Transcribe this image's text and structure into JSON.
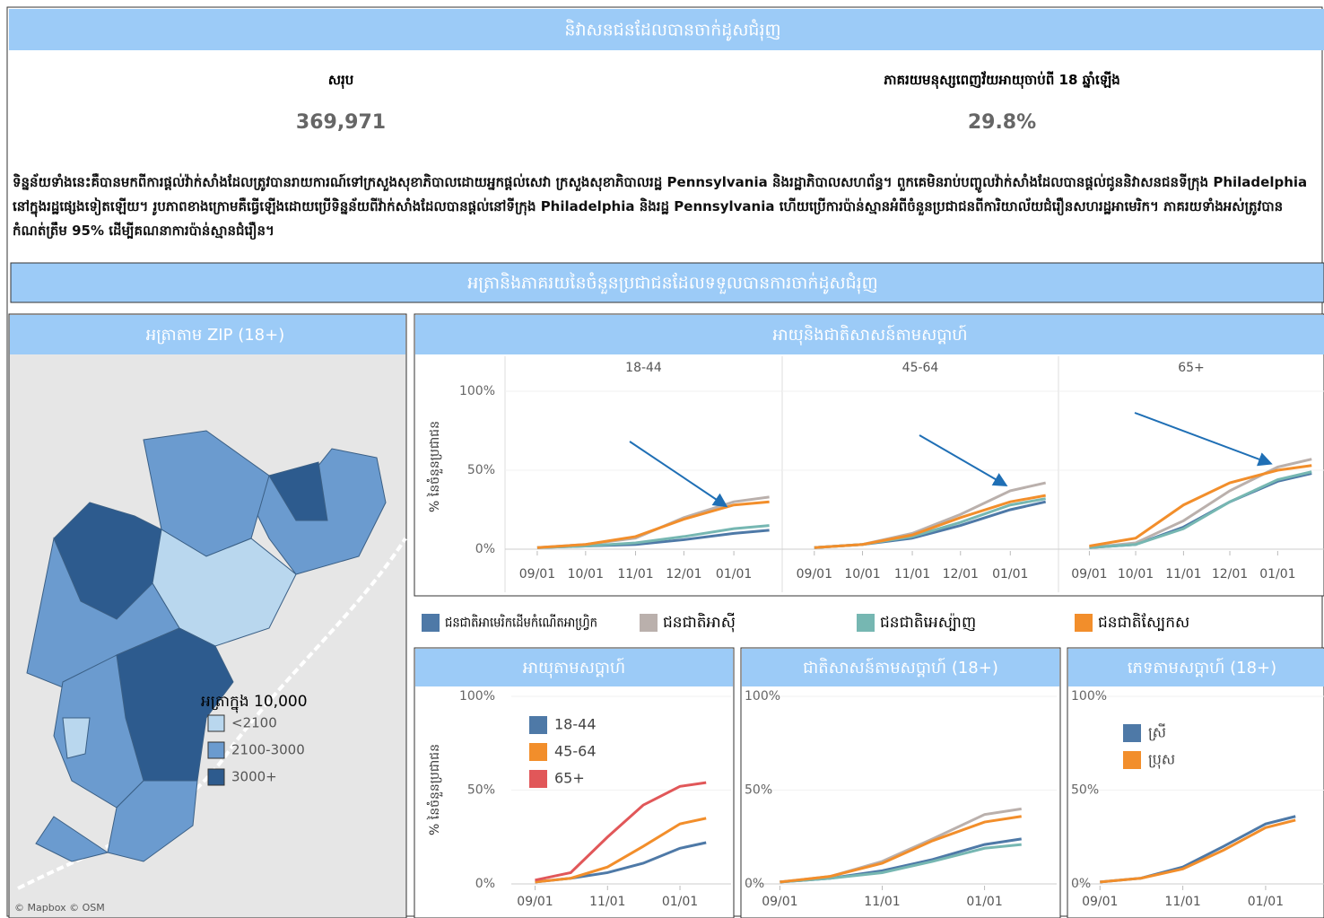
{
  "header": {
    "title": "និវាសនជនដែលបានចាក់ដូសជំរុញ"
  },
  "stats": [
    {
      "label": "សរុប",
      "value": "369,971"
    },
    {
      "label": "ភាគរយមនុស្សពេញវ័យអាយុចាប់ពី 18 ឆ្នាំឡើង",
      "value": "29.8%"
    }
  ],
  "description": "ទិន្នន័យទាំងនេះគឺបានមកពីការផ្តល់វ៉ាក់សាំងដែលត្រូវបានរាយការណ៍ទៅក្រសួងសុខាភិបាលដោយអ្នកផ្តល់សេវា ក្រសួងសុខាភិបាលរដ្ឋ Pennsylvania និងរដ្ឋាភិបាលសហព័ន្ធ។ ពួកគេមិនរាប់បញ្ចូលវ៉ាក់សាំងដែលបានផ្តល់ជូននិវាសនជនទីក្រុង Philadelphia នៅក្នុងរដ្ឋផ្សេងទៀតឡើយ។ រូបភាពខាងក្រោមគឺធ្វើឡើងដោយប្រើទិន្នន័យពីវ៉ាក់សាំងដែលបានផ្តល់នៅទីក្រុង Philadelphia និងរដ្ឋ Pennsylvania ហើយប្រើការប៉ាន់ស្មានអំពីចំនួនប្រជាជនពីការិយាល័យជំរឿនសហរដ្ឋអាមេរិក។ ភាគរយទាំងអស់ត្រូវបានកំណត់ត្រឹម 95% ដើម្បីគណនាការប៉ាន់ស្មានជំរឿន។",
  "section": {
    "title": "អត្រានិងភាគរយនៃចំនួនប្រជាជនដែលទទួលបានការចាក់ដូសជំរុញ"
  },
  "map": {
    "title": "អត្រាតាម ZIP (18+)",
    "legend_title": "អត្រាក្នុង 10,000",
    "legend": [
      {
        "label": "<2100",
        "color": "#b9d7ee"
      },
      {
        "label": "2100-3000",
        "color": "#6b9bcf"
      },
      {
        "label": "3000+",
        "color": "#2d5b8e"
      }
    ],
    "attribution": "© Mapbox © OSM"
  },
  "chart_data": [
    {
      "type": "line",
      "title": "អាយុនិងជាតិសាសន៍តាមសប្តាហ៍",
      "y_label": "% នៃចំនួនប្រជាជន",
      "facets": [
        "18-44",
        "45-64",
        "65+"
      ],
      "x": [
        0,
        30,
        61,
        91,
        122,
        144
      ],
      "xlim": [
        -20,
        152
      ],
      "xticks": [
        {
          "value": 0,
          "label": "09/01"
        },
        {
          "value": 30,
          "label": "10/01"
        },
        {
          "value": 61,
          "label": "11/01"
        },
        {
          "value": 91,
          "label": "12/01"
        },
        {
          "value": 122,
          "label": "01/01"
        }
      ],
      "ylim": [
        0,
        100
      ],
      "yticks": [
        {
          "value": 0,
          "label": "0%"
        },
        {
          "value": 50,
          "label": "50%"
        },
        {
          "value": 100,
          "label": "100%"
        }
      ],
      "series": [
        {
          "name": "ជនជាតិអាមេរិកដើមកំណើតអាហ្វ្រិក",
          "color": "#4e79a7",
          "values": [
            [
              1,
              2,
              3,
              6,
              10,
              12
            ],
            [
              1,
              3,
              7,
              15,
              25,
              30
            ],
            [
              1,
              3,
              14,
              30,
              43,
              48
            ]
          ]
        },
        {
          "name": "ជនជាតិអាស៊ី",
          "color": "#bab0ac",
          "values": [
            [
              1,
              3,
              7,
              20,
              30,
              33
            ],
            [
              1,
              3,
              10,
              22,
              37,
              42
            ],
            [
              1,
              4,
              18,
              37,
              52,
              57
            ]
          ]
        },
        {
          "name": "ជនជាតិអេស្ប៉ាញ",
          "color": "#76b7b2",
          "values": [
            [
              1,
              2,
              4,
              8,
              13,
              15
            ],
            [
              1,
              3,
              8,
              17,
              28,
              32
            ],
            [
              1,
              3,
              13,
              30,
              44,
              49
            ]
          ]
        },
        {
          "name": "ជនជាតិស្បែកស",
          "color": "#f28e2b",
          "values": [
            [
              1,
              3,
              8,
              19,
              28,
              30
            ],
            [
              1,
              3,
              9,
              20,
              30,
              34
            ],
            [
              2,
              7,
              28,
              42,
              50,
              53
            ]
          ]
        }
      ]
    },
    {
      "type": "line",
      "title": "អាយុតាមសប្តាហ៍",
      "y_label": "% នៃចំនួនប្រជាជន",
      "x": [
        0,
        30,
        61,
        91,
        122,
        144
      ],
      "xlim": [
        -20,
        165
      ],
      "xticks": [
        {
          "value": 0,
          "label": "09/01"
        },
        {
          "value": 61,
          "label": "11/01"
        },
        {
          "value": 122,
          "label": "01/01"
        }
      ],
      "ylim": [
        0,
        100
      ],
      "yticks": [
        {
          "value": 0,
          "label": "0%"
        },
        {
          "value": 50,
          "label": "50%"
        },
        {
          "value": 100,
          "label": "100%"
        }
      ],
      "series": [
        {
          "name": "18-44",
          "color": "#4e79a7",
          "values": [
            1,
            3,
            6,
            11,
            19,
            22
          ]
        },
        {
          "name": "45-64",
          "color": "#f28e2b",
          "values": [
            1,
            3,
            9,
            20,
            32,
            35
          ]
        },
        {
          "name": "65+",
          "color": "#e15759",
          "values": [
            2,
            6,
            25,
            42,
            52,
            54
          ]
        }
      ]
    },
    {
      "type": "line",
      "title": "ជាតិសាសន៍តាមសប្តាហ៍ (18+)",
      "x": [
        0,
        30,
        61,
        91,
        122,
        144
      ],
      "xlim": [
        -20,
        165
      ],
      "xticks": [
        {
          "value": 0,
          "label": "09/01"
        },
        {
          "value": 61,
          "label": "11/01"
        },
        {
          "value": 122,
          "label": "01/01"
        }
      ],
      "ylim": [
        0,
        100
      ],
      "yticks": [
        {
          "value": 0,
          "label": "0%"
        },
        {
          "value": 50,
          "label": "50%"
        },
        {
          "value": 100,
          "label": "100%"
        }
      ],
      "series": [
        {
          "color": "#4e79a7",
          "values": [
            1,
            3,
            7,
            13,
            21,
            24
          ]
        },
        {
          "color": "#bab0ac",
          "values": [
            1,
            4,
            12,
            24,
            37,
            40
          ]
        },
        {
          "color": "#76b7b2",
          "values": [
            1,
            3,
            6,
            12,
            19,
            21
          ]
        },
        {
          "color": "#f28e2b",
          "values": [
            1,
            4,
            11,
            23,
            33,
            36
          ]
        }
      ]
    },
    {
      "type": "line",
      "title": "ភេទតាមសប្តាហ៍ (18+)",
      "x": [
        0,
        30,
        61,
        91,
        122,
        144
      ],
      "xlim": [
        -20,
        165
      ],
      "xticks": [
        {
          "value": 0,
          "label": "09/01"
        },
        {
          "value": 61,
          "label": "11/01"
        },
        {
          "value": 122,
          "label": "01/01"
        }
      ],
      "ylim": [
        0,
        100
      ],
      "yticks": [
        {
          "value": 0,
          "label": "0%"
        },
        {
          "value": 50,
          "label": "50%"
        },
        {
          "value": 100,
          "label": "100%"
        }
      ],
      "series": [
        {
          "name": "ស្រី",
          "color": "#4e79a7",
          "values": [
            1,
            3,
            9,
            20,
            32,
            36
          ]
        },
        {
          "name": "ប្រុស",
          "color": "#f28e2b",
          "values": [
            1,
            3,
            8,
            18,
            30,
            34
          ]
        }
      ]
    }
  ]
}
